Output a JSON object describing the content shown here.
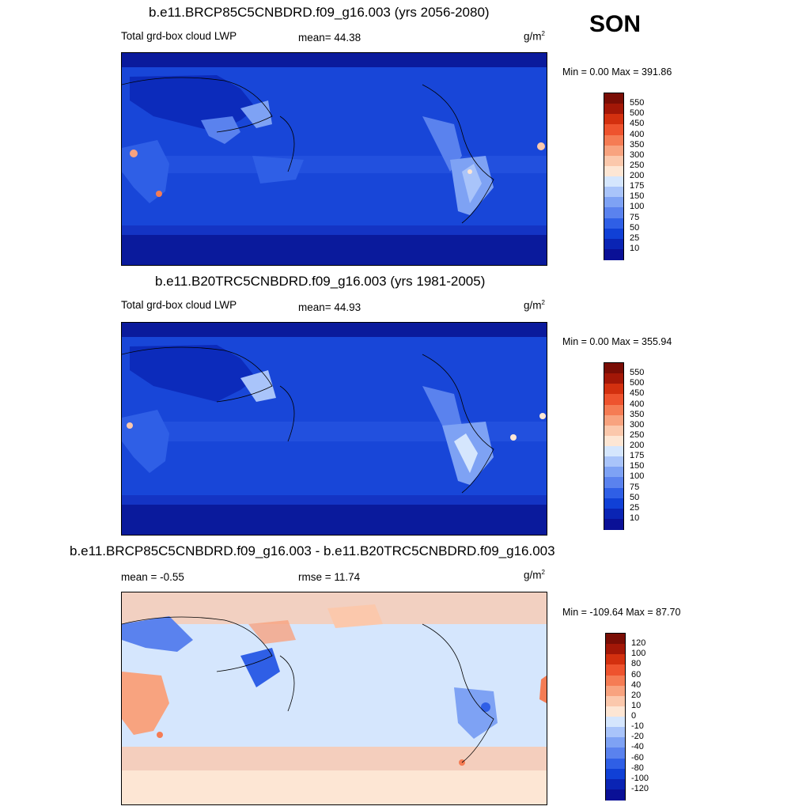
{
  "season": "SON",
  "colors": {
    "abs_scale": [
      "#0a1096",
      "#0a24b4",
      "#1040d6",
      "#2f5fe6",
      "#5a82ee",
      "#7ea2f4",
      "#a9c4fa",
      "#d5e6fd",
      "#fde6d4",
      "#fbc8ac",
      "#f8a37f",
      "#f57c54",
      "#ee532e",
      "#d3300f",
      "#a31707",
      "#7a0d05"
    ],
    "diff_scale": [
      "#0a1096",
      "#0a24b4",
      "#1040d6",
      "#2f5fe6",
      "#5a82ee",
      "#7ea2f4",
      "#a9c4fa",
      "#d5e6fd",
      "#fde6d4",
      "#fbc8ac",
      "#f8a37f",
      "#f57c54",
      "#ee532e",
      "#d3300f",
      "#a31707",
      "#7a0d05"
    ]
  },
  "panels": [
    {
      "title": "b.e11.BRCP85C5CNBDRD.f09_g16.003 (yrs 2056-2080)",
      "left_label": "Total grd-box cloud LWP",
      "mid_label": "mean=  44.38",
      "units": "g/m",
      "units_sup": "2",
      "minmax": "Min =    0.00 Max = 391.86",
      "colorbar_labels": [
        "550",
        "500",
        "450",
        "400",
        "350",
        "300",
        "250",
        "200",
        "175",
        "150",
        "100",
        "75",
        "50",
        "25",
        "10"
      ]
    },
    {
      "title": "b.e11.B20TRC5CNBDRD.f09_g16.003 (yrs 1981-2005)",
      "left_label": "Total grd-box cloud LWP",
      "mid_label": "mean=  44.93",
      "units": "g/m",
      "units_sup": "2",
      "minmax": "Min =    0.00 Max = 355.94",
      "colorbar_labels": [
        "550",
        "500",
        "450",
        "400",
        "350",
        "300",
        "250",
        "200",
        "175",
        "150",
        "100",
        "75",
        "50",
        "25",
        "10"
      ]
    },
    {
      "title": "b.e11.BRCP85C5CNBDRD.f09_g16.003 - b.e11.B20TRC5CNBDRD.f09_g16.003",
      "left_label": "mean =  -0.55",
      "mid_label": "rmse =  11.74",
      "units": "g/m",
      "units_sup": "2",
      "minmax": "Min = -109.64 Max =  87.70",
      "colorbar_labels": [
        "120",
        "100",
        "80",
        "60",
        "40",
        "20",
        "10",
        "0",
        "-10",
        "-20",
        "-40",
        "-60",
        "-80",
        "-100",
        "-120"
      ]
    }
  ]
}
